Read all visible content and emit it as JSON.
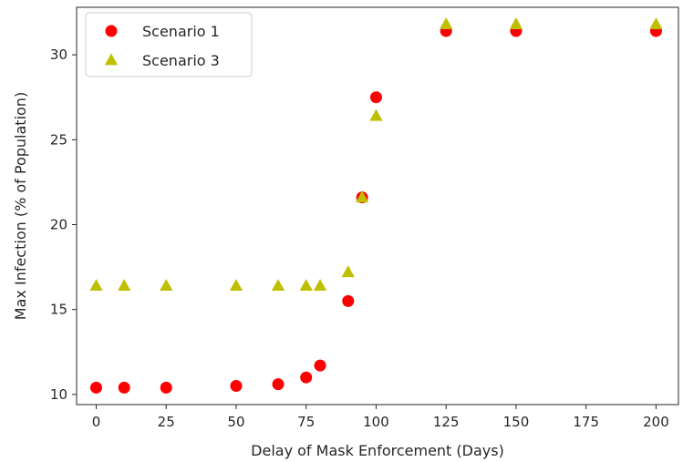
{
  "chart_data": {
    "type": "scatter",
    "title": "",
    "xlabel": "Delay of Mask Enforcement (Days)",
    "ylabel": "Max Infection (% of Population)",
    "xlim": [
      -7,
      208
    ],
    "ylim": [
      9.4,
      32.8
    ],
    "xticks": [
      0,
      25,
      50,
      75,
      100,
      125,
      150,
      175,
      200
    ],
    "xtick_labels": [
      "0",
      "25",
      "50",
      "75",
      "100",
      "125",
      "150",
      "175",
      "200"
    ],
    "yticks": [
      10,
      15,
      20,
      25,
      30
    ],
    "ytick_labels": [
      "10",
      "15",
      "20",
      "25",
      "30"
    ],
    "grid": false,
    "legend_position": "upper-left",
    "series": [
      {
        "name": "Scenario 1",
        "marker": "circle",
        "color": "#ff0000",
        "x": [
          0,
          10,
          25,
          50,
          65,
          75,
          80,
          90,
          95,
          100,
          125,
          150,
          200
        ],
        "y": [
          10.4,
          10.4,
          10.4,
          10.5,
          10.6,
          11.0,
          11.7,
          15.5,
          21.6,
          27.5,
          31.4,
          31.4,
          31.4
        ]
      },
      {
        "name": "Scenario 3",
        "marker": "triangle",
        "color": "#bfbf00",
        "x": [
          0,
          10,
          25,
          50,
          65,
          75,
          80,
          90,
          95,
          100,
          125,
          150,
          200
        ],
        "y": [
          16.4,
          16.4,
          16.4,
          16.4,
          16.4,
          16.4,
          16.4,
          17.2,
          21.6,
          26.4,
          31.8,
          31.8,
          31.8
        ]
      }
    ]
  }
}
